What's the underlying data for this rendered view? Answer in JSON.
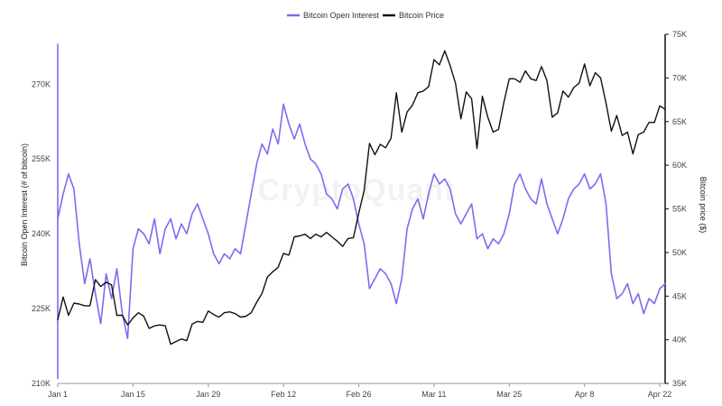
{
  "chart_data": {
    "type": "line",
    "title": "",
    "watermark": "CryptoQuant",
    "legend": {
      "position": "top-center",
      "items": [
        {
          "name": "Bitcoin Open Interest",
          "color": "#7b6cf0"
        },
        {
          "name": "Bitcoin Price",
          "color": "#111111"
        }
      ]
    },
    "x_axis": {
      "start": "2024-01-01",
      "end": "2024-04-23",
      "tick_labels": [
        {
          "date": "2024-01-01",
          "label": "Jan 1"
        },
        {
          "date": "2024-01-15",
          "label": "Jan 15"
        },
        {
          "date": "2024-01-29",
          "label": "Jan 29"
        },
        {
          "date": "2024-02-12",
          "label": "Feb 12"
        },
        {
          "date": "2024-02-26",
          "label": "Feb 26"
        },
        {
          "date": "2024-03-11",
          "label": "Mar 11"
        },
        {
          "date": "2024-03-25",
          "label": "Mar 25"
        },
        {
          "date": "2024-04-08",
          "label": "Apr 8"
        },
        {
          "date": "2024-04-22",
          "label": "Apr 22"
        }
      ]
    },
    "y_axis_left": {
      "label": "Bitcoin Open Interest (# of bitcoin)",
      "min": 210000,
      "max": 280000,
      "tick_labels": [
        {
          "value": 210000,
          "label": "210K"
        },
        {
          "value": 225000,
          "label": "225K"
        },
        {
          "value": 240000,
          "label": "240K"
        },
        {
          "value": 255000,
          "label": "255K"
        },
        {
          "value": 270000,
          "label": "270K"
        }
      ]
    },
    "y_axis_right": {
      "label": "Bitcoin price ($)",
      "min": 35000,
      "max": 75000,
      "tick_labels": [
        {
          "value": 35000,
          "label": "35K"
        },
        {
          "value": 40000,
          "label": "40K"
        },
        {
          "value": 45000,
          "label": "45K"
        },
        {
          "value": 50000,
          "label": "50K"
        },
        {
          "value": 55000,
          "label": "55K"
        },
        {
          "value": 60000,
          "label": "60K"
        },
        {
          "value": 65000,
          "label": "65K"
        },
        {
          "value": 70000,
          "label": "70K"
        },
        {
          "value": 75000,
          "label": "75K"
        }
      ]
    },
    "series": [
      {
        "name": "Bitcoin Open Interest",
        "axis": "left",
        "color": "#7b6cf0",
        "points": [
          [
            "2024-01-01",
            211000
          ],
          [
            "2024-01-01",
            278000
          ],
          [
            "2024-01-01",
            243000
          ],
          [
            "2024-01-02",
            248000
          ],
          [
            "2024-01-03",
            252000
          ],
          [
            "2024-01-04",
            249000
          ],
          [
            "2024-01-05",
            238000
          ],
          [
            "2024-01-06",
            230000
          ],
          [
            "2024-01-07",
            235000
          ],
          [
            "2024-01-08",
            228000
          ],
          [
            "2024-01-09",
            222000
          ],
          [
            "2024-01-10",
            232000
          ],
          [
            "2024-01-11",
            227000
          ],
          [
            "2024-01-12",
            233000
          ],
          [
            "2024-01-13",
            224000
          ],
          [
            "2024-01-14",
            219000
          ],
          [
            "2024-01-15",
            237000
          ],
          [
            "2024-01-16",
            241000
          ],
          [
            "2024-01-17",
            240000
          ],
          [
            "2024-01-18",
            238000
          ],
          [
            "2024-01-19",
            243000
          ],
          [
            "2024-01-20",
            236000
          ],
          [
            "2024-01-21",
            241000
          ],
          [
            "2024-01-22",
            243000
          ],
          [
            "2024-01-23",
            239000
          ],
          [
            "2024-01-24",
            242000
          ],
          [
            "2024-01-25",
            240000
          ],
          [
            "2024-01-26",
            244000
          ],
          [
            "2024-01-27",
            246000
          ],
          [
            "2024-01-28",
            243000
          ],
          [
            "2024-01-29",
            240000
          ],
          [
            "2024-01-30",
            236000
          ],
          [
            "2024-01-31",
            234000
          ],
          [
            "2024-02-01",
            236000
          ],
          [
            "2024-02-02",
            235000
          ],
          [
            "2024-02-03",
            237000
          ],
          [
            "2024-02-04",
            236000
          ],
          [
            "2024-02-05",
            242000
          ],
          [
            "2024-02-06",
            248000
          ],
          [
            "2024-02-07",
            254000
          ],
          [
            "2024-02-08",
            258000
          ],
          [
            "2024-02-09",
            256000
          ],
          [
            "2024-02-10",
            261000
          ],
          [
            "2024-02-11",
            258000
          ],
          [
            "2024-02-12",
            266000
          ],
          [
            "2024-02-13",
            262000
          ],
          [
            "2024-02-14",
            259000
          ],
          [
            "2024-02-15",
            262000
          ],
          [
            "2024-02-16",
            258000
          ],
          [
            "2024-02-17",
            255000
          ],
          [
            "2024-02-18",
            254000
          ],
          [
            "2024-02-19",
            252000
          ],
          [
            "2024-02-20",
            248000
          ],
          [
            "2024-02-21",
            247000
          ],
          [
            "2024-02-22",
            245000
          ],
          [
            "2024-02-23",
            249000
          ],
          [
            "2024-02-24",
            250000
          ],
          [
            "2024-02-25",
            247000
          ],
          [
            "2024-02-26",
            242000
          ],
          [
            "2024-02-27",
            238000
          ],
          [
            "2024-02-28",
            229000
          ],
          [
            "2024-02-29",
            231000
          ],
          [
            "2024-03-01",
            233000
          ],
          [
            "2024-03-02",
            232000
          ],
          [
            "2024-03-03",
            230000
          ],
          [
            "2024-03-04",
            226000
          ],
          [
            "2024-03-05",
            231000
          ],
          [
            "2024-03-06",
            241000
          ],
          [
            "2024-03-07",
            245000
          ],
          [
            "2024-03-08",
            247000
          ],
          [
            "2024-03-09",
            243000
          ],
          [
            "2024-03-10",
            248000
          ],
          [
            "2024-03-11",
            252000
          ],
          [
            "2024-03-12",
            250000
          ],
          [
            "2024-03-13",
            251000
          ],
          [
            "2024-03-14",
            249000
          ],
          [
            "2024-03-15",
            244000
          ],
          [
            "2024-03-16",
            242000
          ],
          [
            "2024-03-17",
            244000
          ],
          [
            "2024-03-18",
            246000
          ],
          [
            "2024-03-19",
            239000
          ],
          [
            "2024-03-20",
            240000
          ],
          [
            "2024-03-21",
            237000
          ],
          [
            "2024-03-22",
            239000
          ],
          [
            "2024-03-23",
            238000
          ],
          [
            "2024-03-24",
            240000
          ],
          [
            "2024-03-25",
            244000
          ],
          [
            "2024-03-26",
            250000
          ],
          [
            "2024-03-27",
            252000
          ],
          [
            "2024-03-28",
            249000
          ],
          [
            "2024-03-29",
            247000
          ],
          [
            "2024-03-30",
            246000
          ],
          [
            "2024-03-31",
            251000
          ],
          [
            "2024-04-01",
            246000
          ],
          [
            "2024-04-02",
            243000
          ],
          [
            "2024-04-03",
            240000
          ],
          [
            "2024-04-04",
            243000
          ],
          [
            "2024-04-05",
            247000
          ],
          [
            "2024-04-06",
            249000
          ],
          [
            "2024-04-07",
            250000
          ],
          [
            "2024-04-08",
            252000
          ],
          [
            "2024-04-09",
            249000
          ],
          [
            "2024-04-10",
            250000
          ],
          [
            "2024-04-11",
            252000
          ],
          [
            "2024-04-12",
            246000
          ],
          [
            "2024-04-13",
            232000
          ],
          [
            "2024-04-14",
            227000
          ],
          [
            "2024-04-15",
            228000
          ],
          [
            "2024-04-16",
            230000
          ],
          [
            "2024-04-17",
            226000
          ],
          [
            "2024-04-18",
            228000
          ],
          [
            "2024-04-19",
            224000
          ],
          [
            "2024-04-20",
            227000
          ],
          [
            "2024-04-21",
            226000
          ],
          [
            "2024-04-22",
            229000
          ],
          [
            "2024-04-23",
            230000
          ]
        ]
      },
      {
        "name": "Bitcoin Price",
        "axis": "right",
        "color": "#111111",
        "points": [
          [
            "2024-01-01",
            42300
          ],
          [
            "2024-01-02",
            44900
          ],
          [
            "2024-01-03",
            42800
          ],
          [
            "2024-01-04",
            44200
          ],
          [
            "2024-01-05",
            44100
          ],
          [
            "2024-01-06",
            43900
          ],
          [
            "2024-01-07",
            43900
          ],
          [
            "2024-01-08",
            46900
          ],
          [
            "2024-01-09",
            46100
          ],
          [
            "2024-01-10",
            46600
          ],
          [
            "2024-01-11",
            46300
          ],
          [
            "2024-01-12",
            42800
          ],
          [
            "2024-01-13",
            42800
          ],
          [
            "2024-01-14",
            41700
          ],
          [
            "2024-01-15",
            42500
          ],
          [
            "2024-01-16",
            43100
          ],
          [
            "2024-01-17",
            42700
          ],
          [
            "2024-01-18",
            41300
          ],
          [
            "2024-01-19",
            41600
          ],
          [
            "2024-01-20",
            41700
          ],
          [
            "2024-01-21",
            41600
          ],
          [
            "2024-01-22",
            39500
          ],
          [
            "2024-01-23",
            39800
          ],
          [
            "2024-01-24",
            40100
          ],
          [
            "2024-01-25",
            39900
          ],
          [
            "2024-01-26",
            41800
          ],
          [
            "2024-01-27",
            42100
          ],
          [
            "2024-01-28",
            42000
          ],
          [
            "2024-01-29",
            43300
          ],
          [
            "2024-01-30",
            42900
          ],
          [
            "2024-01-31",
            42600
          ],
          [
            "2024-02-01",
            43100
          ],
          [
            "2024-02-02",
            43200
          ],
          [
            "2024-02-03",
            43000
          ],
          [
            "2024-02-04",
            42600
          ],
          [
            "2024-02-05",
            42700
          ],
          [
            "2024-02-06",
            43100
          ],
          [
            "2024-02-07",
            44300
          ],
          [
            "2024-02-08",
            45300
          ],
          [
            "2024-02-09",
            47200
          ],
          [
            "2024-02-10",
            47800
          ],
          [
            "2024-02-11",
            48300
          ],
          [
            "2024-02-12",
            49900
          ],
          [
            "2024-02-13",
            49700
          ],
          [
            "2024-02-14",
            51800
          ],
          [
            "2024-02-15",
            51900
          ],
          [
            "2024-02-16",
            52100
          ],
          [
            "2024-02-17",
            51600
          ],
          [
            "2024-02-18",
            52100
          ],
          [
            "2024-02-19",
            51800
          ],
          [
            "2024-02-20",
            52300
          ],
          [
            "2024-02-21",
            51800
          ],
          [
            "2024-02-22",
            51300
          ],
          [
            "2024-02-23",
            50700
          ],
          [
            "2024-02-24",
            51600
          ],
          [
            "2024-02-25",
            51700
          ],
          [
            "2024-02-26",
            54500
          ],
          [
            "2024-02-27",
            57100
          ],
          [
            "2024-02-28",
            62500
          ],
          [
            "2024-02-29",
            61200
          ],
          [
            "2024-03-01",
            62400
          ],
          [
            "2024-03-02",
            62000
          ],
          [
            "2024-03-03",
            63100
          ],
          [
            "2024-03-04",
            68300
          ],
          [
            "2024-03-05",
            63800
          ],
          [
            "2024-03-06",
            66100
          ],
          [
            "2024-03-07",
            66900
          ],
          [
            "2024-03-08",
            68300
          ],
          [
            "2024-03-09",
            68500
          ],
          [
            "2024-03-10",
            69000
          ],
          [
            "2024-03-11",
            72100
          ],
          [
            "2024-03-12",
            71500
          ],
          [
            "2024-03-13",
            73100
          ],
          [
            "2024-03-14",
            71400
          ],
          [
            "2024-03-15",
            69400
          ],
          [
            "2024-03-16",
            65300
          ],
          [
            "2024-03-17",
            68400
          ],
          [
            "2024-03-18",
            67600
          ],
          [
            "2024-03-19",
            61900
          ],
          [
            "2024-03-20",
            67900
          ],
          [
            "2024-03-21",
            65500
          ],
          [
            "2024-03-22",
            63800
          ],
          [
            "2024-03-23",
            64100
          ],
          [
            "2024-03-24",
            67200
          ],
          [
            "2024-03-25",
            69900
          ],
          [
            "2024-03-26",
            69900
          ],
          [
            "2024-03-27",
            69500
          ],
          [
            "2024-03-28",
            70800
          ],
          [
            "2024-03-29",
            69900
          ],
          [
            "2024-03-30",
            69700
          ],
          [
            "2024-03-31",
            71300
          ],
          [
            "2024-04-01",
            69700
          ],
          [
            "2024-04-02",
            65500
          ],
          [
            "2024-04-03",
            66000
          ],
          [
            "2024-04-04",
            68500
          ],
          [
            "2024-04-05",
            67800
          ],
          [
            "2024-04-06",
            68900
          ],
          [
            "2024-04-07",
            69400
          ],
          [
            "2024-04-08",
            71600
          ],
          [
            "2024-04-09",
            69100
          ],
          [
            "2024-04-10",
            70600
          ],
          [
            "2024-04-11",
            70000
          ],
          [
            "2024-04-12",
            67100
          ],
          [
            "2024-04-13",
            63900
          ],
          [
            "2024-04-14",
            65700
          ],
          [
            "2024-04-15",
            63400
          ],
          [
            "2024-04-16",
            63800
          ],
          [
            "2024-04-17",
            61300
          ],
          [
            "2024-04-18",
            63500
          ],
          [
            "2024-04-19",
            63800
          ],
          [
            "2024-04-20",
            64900
          ],
          [
            "2024-04-21",
            64900
          ],
          [
            "2024-04-22",
            66800
          ],
          [
            "2024-04-23",
            66400
          ]
        ]
      }
    ]
  }
}
